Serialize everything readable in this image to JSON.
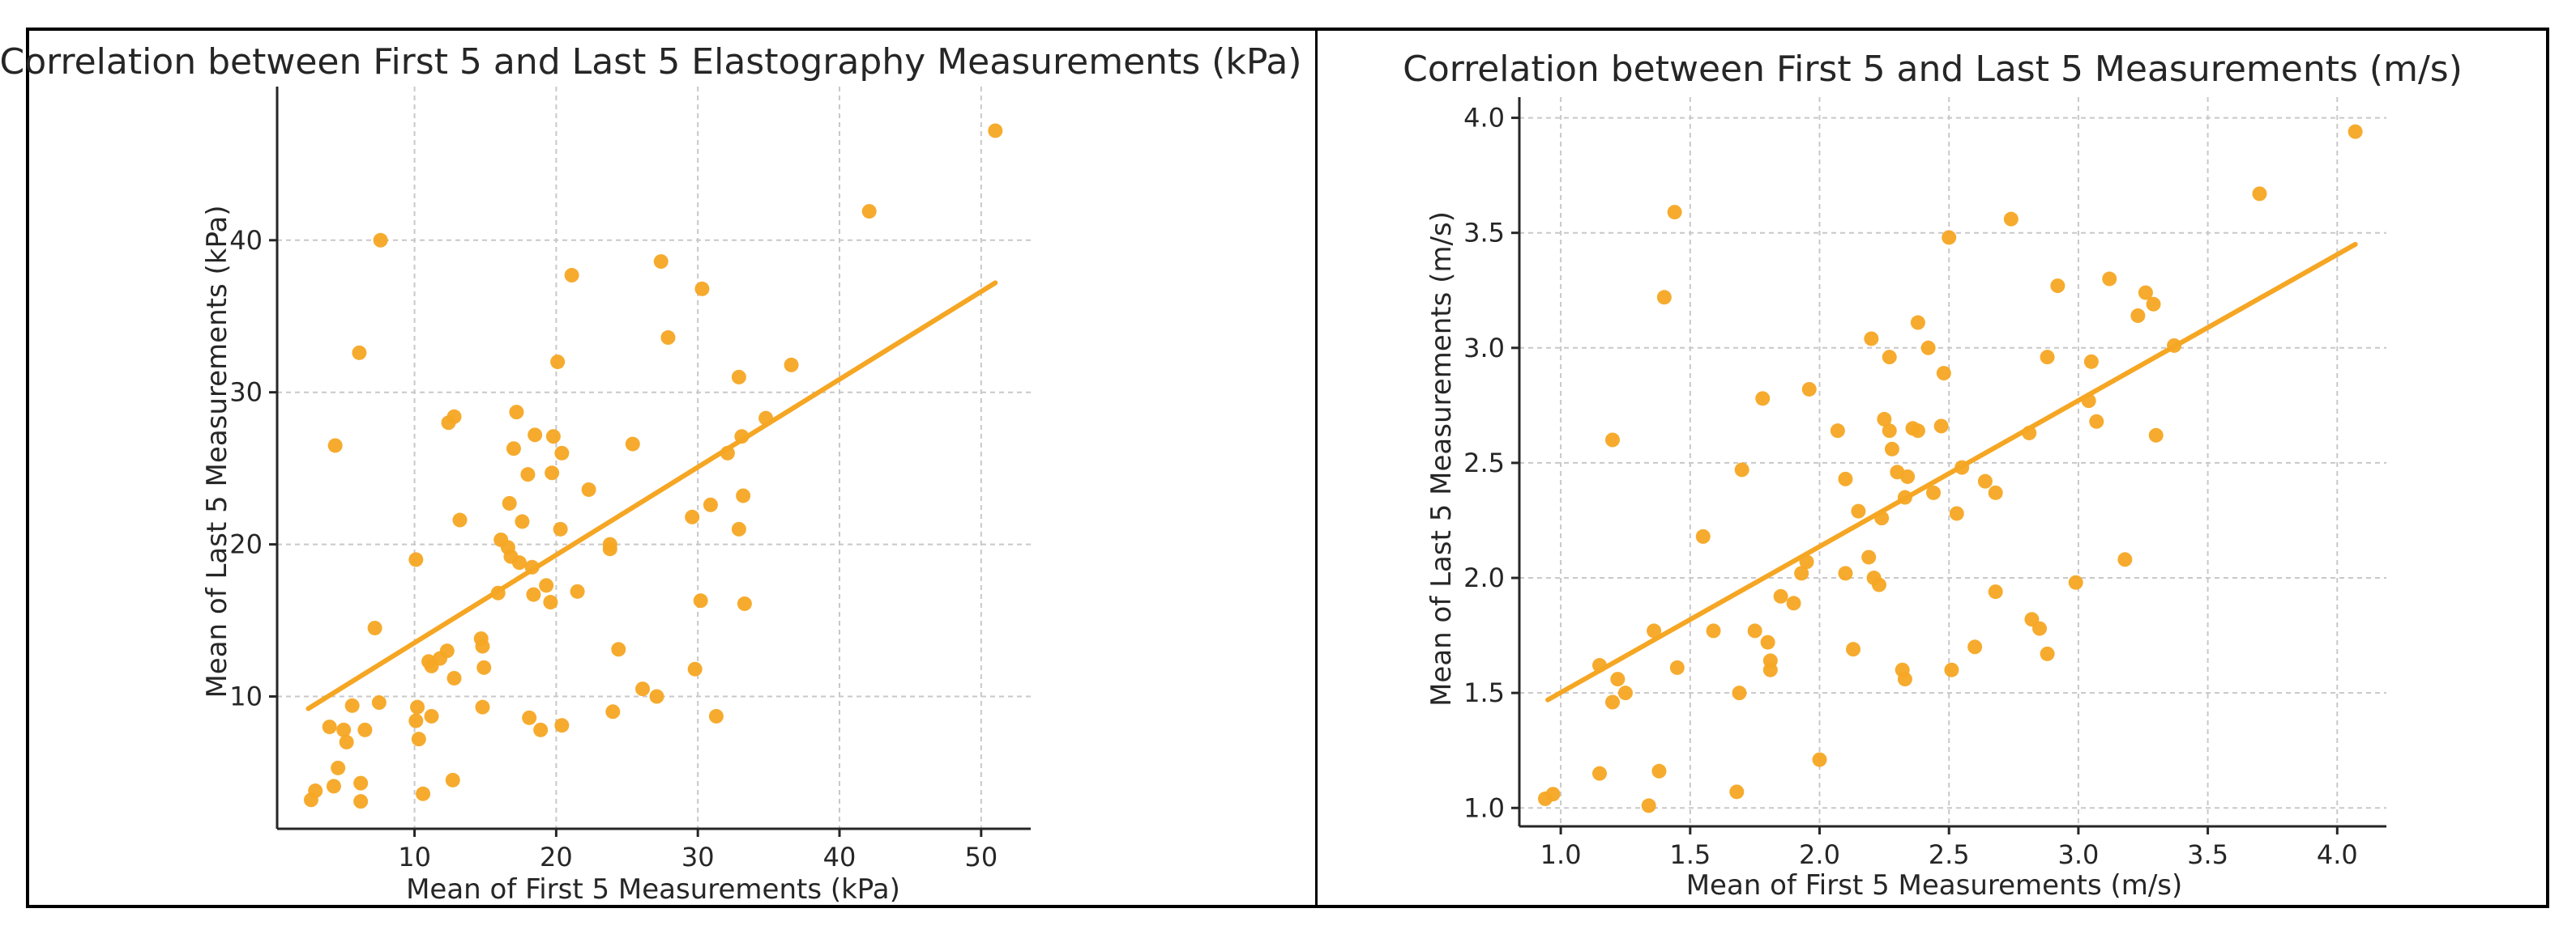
{
  "colors": {
    "point": "#f5a623",
    "trend": "#f5a623",
    "grid": "#c8c8c8",
    "text": "#262626"
  },
  "chart_data": [
    {
      "type": "scatter",
      "title": "Correlation between First 5 and Last 5 Elastography Measurements (kPa)",
      "xlabel": "Mean of First 5 Measurements (kPa)",
      "ylabel": "Mean of Last 5 Measurements (kPa)",
      "xlim": [
        0.3,
        53.5
      ],
      "ylim": [
        1.3,
        50.1
      ],
      "xticks": [
        10,
        20,
        30,
        40,
        50
      ],
      "yticks": [
        10,
        20,
        30,
        40
      ],
      "grid": true,
      "trendline": {
        "x": [
          2.5,
          51
        ],
        "y": [
          9.2,
          37.2
        ]
      },
      "points": [
        [
          2.7,
          3.2
        ],
        [
          3.0,
          3.8
        ],
        [
          4.0,
          8.0
        ],
        [
          4.3,
          4.1
        ],
        [
          4.6,
          5.3
        ],
        [
          5.0,
          7.8
        ],
        [
          5.2,
          7.0
        ],
        [
          4.4,
          26.5
        ],
        [
          5.6,
          9.4
        ],
        [
          6.2,
          4.3
        ],
        [
          6.2,
          3.1
        ],
        [
          6.5,
          7.8
        ],
        [
          6.1,
          32.6
        ],
        [
          7.2,
          14.5
        ],
        [
          7.5,
          9.6
        ],
        [
          7.6,
          40.0
        ],
        [
          10.1,
          19.0
        ],
        [
          10.1,
          8.4
        ],
        [
          10.2,
          9.3
        ],
        [
          10.3,
          7.2
        ],
        [
          10.6,
          3.6
        ],
        [
          11.0,
          12.3
        ],
        [
          11.2,
          8.7
        ],
        [
          11.2,
          12.0
        ],
        [
          11.8,
          12.5
        ],
        [
          12.3,
          13.0
        ],
        [
          12.4,
          28.0
        ],
        [
          12.7,
          4.5
        ],
        [
          12.8,
          28.4
        ],
        [
          12.8,
          11.2
        ],
        [
          13.2,
          21.6
        ],
        [
          14.7,
          13.8
        ],
        [
          14.8,
          13.3
        ],
        [
          14.9,
          11.9
        ],
        [
          14.8,
          9.3
        ],
        [
          15.9,
          16.8
        ],
        [
          16.1,
          20.3
        ],
        [
          16.6,
          19.8
        ],
        [
          16.7,
          22.7
        ],
        [
          16.8,
          19.2
        ],
        [
          17.2,
          28.7
        ],
        [
          17.0,
          26.3
        ],
        [
          17.4,
          18.8
        ],
        [
          17.6,
          21.5
        ],
        [
          18.0,
          24.6
        ],
        [
          18.1,
          8.6
        ],
        [
          18.3,
          18.5
        ],
        [
          18.5,
          27.2
        ],
        [
          18.4,
          16.7
        ],
        [
          18.9,
          7.8
        ],
        [
          19.3,
          17.3
        ],
        [
          19.6,
          16.2
        ],
        [
          19.7,
          24.7
        ],
        [
          19.8,
          27.1
        ],
        [
          20.1,
          32.0
        ],
        [
          20.4,
          26.0
        ],
        [
          20.4,
          8.1
        ],
        [
          20.3,
          21.0
        ],
        [
          21.1,
          37.7
        ],
        [
          21.5,
          16.9
        ],
        [
          22.3,
          23.6
        ],
        [
          23.8,
          20.0
        ],
        [
          23.8,
          19.7
        ],
        [
          24.0,
          9.0
        ],
        [
          24.4,
          13.1
        ],
        [
          25.4,
          26.6
        ],
        [
          26.1,
          10.5
        ],
        [
          27.1,
          10.0
        ],
        [
          27.4,
          38.6
        ],
        [
          27.9,
          33.6
        ],
        [
          29.6,
          21.8
        ],
        [
          29.8,
          11.8
        ],
        [
          30.3,
          36.8
        ],
        [
          30.2,
          16.3
        ],
        [
          30.9,
          22.6
        ],
        [
          31.3,
          8.7
        ],
        [
          32.1,
          26.0
        ],
        [
          32.9,
          31.0
        ],
        [
          33.1,
          27.1
        ],
        [
          32.9,
          21.0
        ],
        [
          33.2,
          23.2
        ],
        [
          33.3,
          16.1
        ],
        [
          34.8,
          28.3
        ],
        [
          36.6,
          31.8
        ],
        [
          42.1,
          41.9
        ],
        [
          51.0,
          47.2
        ]
      ]
    },
    {
      "type": "scatter",
      "title": "Correlation between First 5 and Last 5 Measurements (m/s)",
      "xlabel": "Mean of First 5 Measurements (m/s)",
      "ylabel": "Mean of Last 5 Measurements (m/s)",
      "xlim": [
        0.84,
        4.19
      ],
      "ylim": [
        0.92,
        4.09
      ],
      "xticks": [
        1.0,
        1.5,
        2.0,
        2.5,
        3.0,
        3.5,
        4.0
      ],
      "yticks": [
        1.0,
        1.5,
        2.0,
        2.5,
        3.0,
        3.5,
        4.0
      ],
      "grid": true,
      "trendline": {
        "x": [
          0.95,
          4.07
        ],
        "y": [
          1.47,
          3.45
        ]
      },
      "points": [
        [
          0.94,
          1.04
        ],
        [
          0.97,
          1.06
        ],
        [
          1.15,
          1.15
        ],
        [
          1.15,
          1.62
        ],
        [
          1.2,
          1.46
        ],
        [
          1.2,
          2.6
        ],
        [
          1.22,
          1.56
        ],
        [
          1.25,
          1.5
        ],
        [
          1.34,
          1.01
        ],
        [
          1.36,
          1.77
        ],
        [
          1.38,
          1.16
        ],
        [
          1.4,
          3.22
        ],
        [
          1.44,
          3.59
        ],
        [
          1.45,
          1.61
        ],
        [
          1.55,
          2.18
        ],
        [
          1.59,
          1.77
        ],
        [
          1.68,
          1.07
        ],
        [
          1.69,
          1.5
        ],
        [
          1.7,
          2.47
        ],
        [
          1.75,
          1.77
        ],
        [
          1.78,
          2.78
        ],
        [
          1.81,
          1.6
        ],
        [
          1.81,
          1.64
        ],
        [
          1.8,
          1.72
        ],
        [
          1.85,
          1.92
        ],
        [
          1.9,
          1.89
        ],
        [
          1.93,
          2.02
        ],
        [
          1.96,
          2.82
        ],
        [
          1.95,
          2.07
        ],
        [
          2.0,
          1.21
        ],
        [
          2.07,
          2.64
        ],
        [
          2.1,
          2.02
        ],
        [
          2.1,
          2.43
        ],
        [
          2.13,
          1.69
        ],
        [
          2.15,
          2.29
        ],
        [
          2.19,
          2.09
        ],
        [
          2.2,
          3.04
        ],
        [
          2.21,
          2.0
        ],
        [
          2.23,
          1.97
        ],
        [
          2.24,
          2.26
        ],
        [
          2.25,
          2.69
        ],
        [
          2.27,
          2.96
        ],
        [
          2.27,
          2.64
        ],
        [
          2.28,
          2.56
        ],
        [
          2.3,
          2.46
        ],
        [
          2.32,
          1.6
        ],
        [
          2.33,
          1.56
        ],
        [
          2.33,
          2.35
        ],
        [
          2.34,
          2.44
        ],
        [
          2.36,
          2.65
        ],
        [
          2.38,
          3.11
        ],
        [
          2.38,
          2.64
        ],
        [
          2.42,
          3.0
        ],
        [
          2.44,
          2.37
        ],
        [
          2.47,
          2.66
        ],
        [
          2.48,
          2.89
        ],
        [
          2.5,
          3.48
        ],
        [
          2.51,
          1.6
        ],
        [
          2.53,
          2.28
        ],
        [
          2.55,
          2.48
        ],
        [
          2.6,
          1.7
        ],
        [
          2.64,
          2.42
        ],
        [
          2.68,
          2.37
        ],
        [
          2.68,
          1.94
        ],
        [
          2.74,
          3.56
        ],
        [
          2.81,
          2.63
        ],
        [
          2.82,
          1.82
        ],
        [
          2.85,
          1.78
        ],
        [
          2.88,
          2.96
        ],
        [
          2.88,
          1.67
        ],
        [
          2.92,
          3.27
        ],
        [
          2.99,
          1.98
        ],
        [
          3.04,
          2.77
        ],
        [
          3.05,
          2.94
        ],
        [
          3.07,
          2.68
        ],
        [
          3.12,
          3.3
        ],
        [
          3.18,
          2.08
        ],
        [
          3.23,
          3.14
        ],
        [
          3.26,
          3.24
        ],
        [
          3.29,
          3.19
        ],
        [
          3.3,
          2.62
        ],
        [
          3.37,
          3.01
        ],
        [
          3.7,
          3.67
        ],
        [
          4.07,
          3.94
        ]
      ]
    }
  ]
}
